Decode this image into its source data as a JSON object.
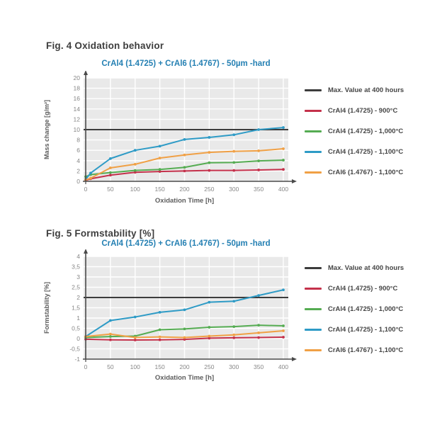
{
  "page": {
    "background": "#ffffff"
  },
  "colors": {
    "plot_background": "#e9e9e9",
    "gridline": "#ffffff",
    "axis": "#4a4a4a",
    "tick_text": "#868686",
    "axis_title_text": "#5c5c5c",
    "heading_text": "#3e3e3e",
    "chart_title_text": "#2580b3",
    "max_line": "#3c3c3c",
    "red_900": "#c4314b",
    "green_1000": "#55ac52",
    "blue_1100": "#2e9bc6",
    "orange_1100": "#f0a045"
  },
  "chart_data": [
    {
      "type": "line",
      "figure_heading": "Fig. 4 Oxidation behavior",
      "title": "CrAl4 (1.4725) + CrAl6 (1.4767) - 50µm -hard",
      "xlabel": "Oxidation Time [h]",
      "ylabel": "Mass change [g/m²]",
      "xlim": [
        0,
        400
      ],
      "ylim": [
        0,
        20
      ],
      "grid": true,
      "legend_position": "right",
      "xticks": [
        0,
        50,
        100,
        150,
        200,
        250,
        300,
        350,
        400
      ],
      "yticks": [
        0,
        2,
        4,
        6,
        8,
        10,
        12,
        14,
        16,
        18,
        20
      ],
      "ytick_labels": [
        "0",
        "2",
        "4",
        "6",
        "8",
        "10",
        "12",
        "14",
        "16",
        "18",
        "20"
      ],
      "x": [
        0,
        10,
        50,
        100,
        150,
        200,
        250,
        300,
        350,
        400
      ],
      "max_line": {
        "label": "Max. Value at 400 hours",
        "value": 10,
        "color": "#3c3c3c"
      },
      "series": [
        {
          "name": "CrAl4 (1.4725) - 900°C",
          "color": "#c4314b",
          "values": [
            0.2,
            0.5,
            1.2,
            1.75,
            1.9,
            2.0,
            2.1,
            2.1,
            2.2,
            2.3
          ]
        },
        {
          "name": "CrAl4 (1.4725) - 1,000°C",
          "color": "#55ac52",
          "values": [
            0.9,
            1.3,
            1.7,
            2.1,
            2.3,
            2.7,
            3.6,
            3.65,
            3.95,
            4.1
          ]
        },
        {
          "name": "CrAl4 (1.4725) - 1,100°C",
          "color": "#2e9bc6",
          "values": [
            0.4,
            1.6,
            4.4,
            6.0,
            6.8,
            8.1,
            8.5,
            9.0,
            10.0,
            10.4
          ]
        },
        {
          "name": "CrAl6 (1.4767) - 1,100°C",
          "color": "#f0a045",
          "values": [
            0.3,
            0.6,
            2.6,
            3.3,
            4.5,
            5.1,
            5.6,
            5.8,
            5.9,
            6.3
          ]
        }
      ]
    },
    {
      "type": "line",
      "figure_heading": "Fig. 5 Formstability [%]",
      "title": "CrAl4 (1.4725) + CrAl6 (1.4767) - 50µm -hard",
      "xlabel": "Oxidation Time [h]",
      "ylabel": "Formstability [%]",
      "xlim": [
        0,
        400
      ],
      "ylim": [
        -1,
        4
      ],
      "grid": true,
      "legend_position": "right",
      "xticks": [
        0,
        50,
        100,
        150,
        200,
        250,
        300,
        350,
        400
      ],
      "yticks": [
        -1,
        -0.5,
        0,
        0.5,
        1,
        1.5,
        2,
        2.5,
        3,
        3.5,
        4
      ],
      "ytick_labels": [
        "-1",
        "-0,5",
        "0",
        "0,5",
        "1",
        "1,5",
        "2",
        "2,5",
        "3",
        "3,5",
        "4"
      ],
      "x": [
        0,
        50,
        100,
        150,
        200,
        250,
        300,
        350,
        400
      ],
      "max_line": {
        "label": "Max. Value at 400 hours",
        "value": 2,
        "color": "#3c3c3c"
      },
      "series": [
        {
          "name": "CrAl4 (1.4725) - 900°C",
          "color": "#c4314b",
          "values": [
            -0.03,
            -0.06,
            -0.07,
            -0.06,
            -0.04,
            0.02,
            0.04,
            0.05,
            0.07
          ]
        },
        {
          "name": "CrAl4 (1.4725) - 1,000°C",
          "color": "#55ac52",
          "values": [
            0.05,
            0.1,
            0.12,
            0.43,
            0.47,
            0.55,
            0.58,
            0.65,
            0.62
          ]
        },
        {
          "name": "CrAl4 (1.4725) - 1,100°C",
          "color": "#2e9bc6",
          "values": [
            0.1,
            0.88,
            1.05,
            1.28,
            1.4,
            1.77,
            1.82,
            2.1,
            2.37
          ]
        },
        {
          "name": "CrAl6 (1.4767) - 1,100°C",
          "color": "#f0a045",
          "values": [
            0.1,
            0.22,
            0.05,
            0.08,
            0.05,
            0.12,
            0.18,
            0.28,
            0.38
          ]
        }
      ]
    }
  ]
}
